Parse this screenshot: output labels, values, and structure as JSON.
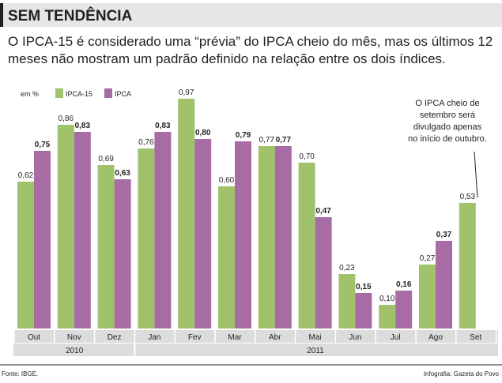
{
  "title": "SEM TENDÊNCIA",
  "subtitle": "O IPCA-15 é considerado uma “prévia” do IPCA cheio do mês, mas os últimos 12 meses não mostram um padrão definido na relação entre os dois índices.",
  "unit_label": "em %",
  "annotation": [
    "O IPCA cheio de",
    "setembro será",
    "divulgado apenas",
    "no início de outubro."
  ],
  "footer": {
    "source": "Fonte: IBGE.",
    "credit": "Infografia: Gazeta do Povo"
  },
  "colors": {
    "ipca15": "#9fc26b",
    "ipca": "#a66ca3",
    "axis_band": "#dcdcdc",
    "title_bg": "#e6e6e6"
  },
  "chart_data": {
    "type": "bar",
    "categories": [
      "Out",
      "Nov",
      "Dez",
      "Jan",
      "Fev",
      "Mar",
      "Abr",
      "Mai",
      "Jun",
      "Jul",
      "Ago",
      "Set"
    ],
    "groups": [
      {
        "label": "2010",
        "categories": [
          "Out",
          "Nov",
          "Dez"
        ]
      },
      {
        "label": "2011",
        "categories": [
          "Jan",
          "Fev",
          "Mar",
          "Abr",
          "Mai",
          "Jun",
          "Jul",
          "Ago",
          "Set"
        ]
      }
    ],
    "series": [
      {
        "name": "IPCA-15",
        "values": [
          0.62,
          0.86,
          0.69,
          0.76,
          0.97,
          0.6,
          0.77,
          0.7,
          0.23,
          0.1,
          0.27,
          0.53
        ],
        "labels": [
          "0,62",
          "0,86",
          "0,69",
          "0,76",
          "0,97",
          "0,60",
          "0,77",
          "0,70",
          "0,23",
          "0,10",
          "0,27",
          "0,53"
        ]
      },
      {
        "name": "IPCA",
        "values": [
          0.75,
          0.83,
          0.63,
          0.83,
          0.8,
          0.79,
          0.77,
          0.47,
          0.15,
          0.16,
          0.37,
          null
        ],
        "labels": [
          "0,75",
          "0,83",
          "0,63",
          "0,83",
          "0,80",
          "0,79",
          "0,77",
          "0,47",
          "0,15",
          "0,16",
          "0,37",
          ""
        ]
      }
    ],
    "ylim": [
      0,
      1.0
    ],
    "grid": false,
    "legend": "top-left"
  }
}
